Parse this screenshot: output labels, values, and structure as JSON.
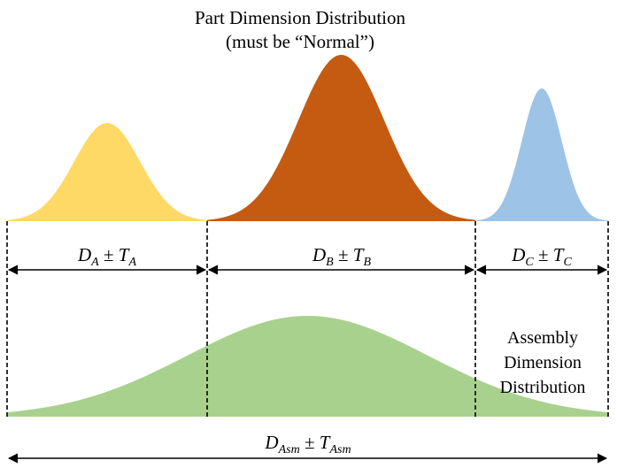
{
  "title": {
    "line1": "Part Dimension Distribution",
    "line2": "(must be “Normal”)"
  },
  "parts": [
    {
      "sym": "D",
      "sub": "A",
      "pm": " ± ",
      "tsym": "T",
      "tsub": "A",
      "color": "#ffd966"
    },
    {
      "sym": "D",
      "sub": "B",
      "pm": " ± ",
      "tsym": "T",
      "tsub": "B",
      "color": "#c55a11"
    },
    {
      "sym": "D",
      "sub": "C",
      "pm": " ± ",
      "tsym": "T",
      "tsub": "C",
      "color": "#9dc3e6"
    }
  ],
  "assembly": {
    "sym": "D",
    "sub": "Asm",
    "pm": " ± ",
    "tsym": "T",
    "tsub": "Asm",
    "color": "#a9d18e",
    "caption": [
      "Assembly",
      "Dimension",
      "Distribution"
    ]
  }
}
